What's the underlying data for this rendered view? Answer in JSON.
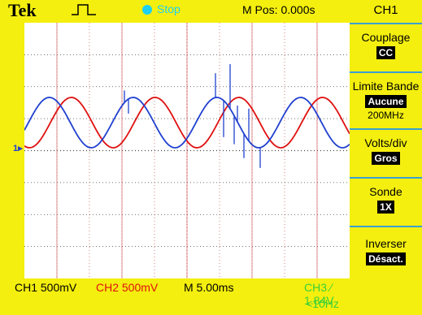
{
  "topbar": {
    "brand": "Tek",
    "trigger_icon": "pulse-trigger-icon",
    "acq_state": "Stop",
    "acq_state_color": "#1dd0f0",
    "m_pos": "M Pos: 0.000s"
  },
  "bottombar": {
    "ch1_scale": "CH1  500mV",
    "ch2_scale": "CH2  500mV",
    "time_scale": "M 5.00ms",
    "trigger": "CH3 ⁄ 1.84V",
    "frequency": "<10Hz"
  },
  "markers": {
    "ch1_ground": "1▸"
  },
  "menu": {
    "title": "CH1",
    "items": [
      {
        "label": "Couplage",
        "value": "CC",
        "extra": ""
      },
      {
        "label": "Limite Bande",
        "value": "Aucune",
        "extra": "200MHz"
      },
      {
        "label": "Volts/div",
        "value": "Gros",
        "extra": ""
      },
      {
        "label": "Sonde",
        "value": "1X",
        "extra": ""
      },
      {
        "label": "Inverser",
        "value": "Désact.",
        "extra": ""
      }
    ]
  },
  "colors": {
    "background": "#f4ef0e",
    "ch1": "#2040d0",
    "ch2": "#e01010",
    "ch3": "#3ad03a",
    "grid": "#d06060"
  }
}
